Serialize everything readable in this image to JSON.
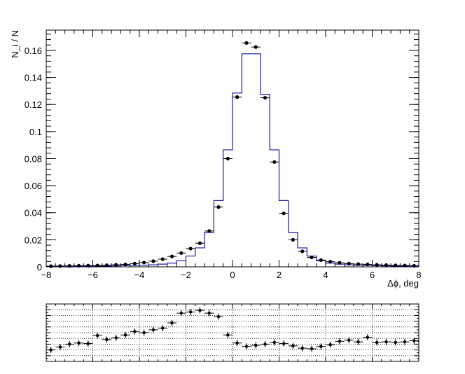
{
  "chart_data": [
    {
      "type": "histogram",
      "xlabel": "Δϕ, deg",
      "ylabel": "N_i / N",
      "xlim": [
        -8,
        8
      ],
      "ylim": [
        0,
        0.175
      ],
      "xticks": [
        "−8",
        "−6",
        "−4",
        "−2",
        "0",
        "2",
        "4",
        "6",
        "8"
      ],
      "yticks": [
        "0",
        "0.02",
        "0.04",
        "0.06",
        "0.08",
        "0.1",
        "0.12",
        "0.14",
        "0.16"
      ],
      "grid": false,
      "series": [
        {
          "style": "step",
          "color": "#1a1aa6",
          "bin_edges": [
            -8,
            -7.6,
            -7.2,
            -6.8,
            -6.4,
            -6,
            -5.6,
            -5.2,
            -4.8,
            -4.4,
            -4,
            -3.6,
            -3.2,
            -2.8,
            -2.4,
            -2,
            -1.6,
            -1.2,
            -0.8,
            -0.4,
            0,
            0.4,
            0.8,
            1.2,
            1.6,
            2,
            2.4,
            2.8,
            3.2,
            3.6,
            4,
            4.4,
            4.8,
            5.2,
            5.6,
            6,
            6.4,
            6.8,
            7.2,
            7.6,
            8
          ],
          "values": [
            0.0004,
            0.0004,
            0.0004,
            0.0005,
            0.0005,
            0.0006,
            0.0006,
            0.0007,
            0.0008,
            0.001,
            0.0012,
            0.0015,
            0.002,
            0.0028,
            0.0045,
            0.008,
            0.014,
            0.0255,
            0.049,
            0.0865,
            0.1285,
            0.1575,
            0.1575,
            0.1275,
            0.0865,
            0.049,
            0.0255,
            0.014,
            0.008,
            0.0045,
            0.0028,
            0.002,
            0.0015,
            0.0012,
            0.001,
            0.0008,
            0.0007,
            0.0006,
            0.0005,
            0.0004
          ]
        },
        {
          "style": "markers",
          "color": "#000000",
          "x": [
            -7.8,
            -7.4,
            -7,
            -6.6,
            -6.2,
            -5.8,
            -5.4,
            -5,
            -4.6,
            -4.2,
            -3.8,
            -3.4,
            -3,
            -2.6,
            -2.2,
            -1.8,
            -1.4,
            -1,
            -0.6,
            -0.2,
            0.2,
            0.6,
            1,
            1.4,
            1.8,
            2.2,
            2.6,
            3,
            3.4,
            3.8,
            4.2,
            4.6,
            5,
            5.4,
            5.8,
            6.2,
            6.6,
            7,
            7.4,
            7.8
          ],
          "y": [
            0.0005,
            0.0006,
            0.0007,
            0.0008,
            0.0009,
            0.001,
            0.0012,
            0.0015,
            0.0018,
            0.0024,
            0.0032,
            0.0042,
            0.0057,
            0.0077,
            0.0102,
            0.0135,
            0.0175,
            0.0265,
            0.0442,
            0.08,
            0.1255,
            0.1655,
            0.1625,
            0.125,
            0.0775,
            0.0395,
            0.02,
            0.0115,
            0.007,
            0.005,
            0.0038,
            0.003,
            0.0024,
            0.002,
            0.0018,
            0.0015,
            0.0013,
            0.0011,
            0.001,
            0.0008
          ]
        }
      ]
    },
    {
      "type": "scatter",
      "xlim": [
        -8,
        8
      ],
      "ylim": [
        0,
        1
      ],
      "grid": true,
      "error_bars": true,
      "x": [
        -7.8,
        -7.4,
        -7,
        -6.6,
        -6.2,
        -5.8,
        -5.4,
        -5,
        -4.6,
        -4.2,
        -3.8,
        -3.4,
        -3,
        -2.6,
        -2.2,
        -1.8,
        -1.4,
        -1,
        -0.6,
        -0.2,
        0.2,
        0.6,
        1,
        1.4,
        1.8,
        2.2,
        2.6,
        3,
        3.4,
        3.8,
        4.2,
        4.6,
        5,
        5.4,
        5.8,
        6.2,
        6.6,
        7,
        7.4,
        7.8
      ],
      "y": [
        0.2,
        0.25,
        0.3,
        0.32,
        0.31,
        0.45,
        0.38,
        0.41,
        0.46,
        0.52,
        0.5,
        0.55,
        0.58,
        0.67,
        0.84,
        0.86,
        0.89,
        0.84,
        0.78,
        0.46,
        0.32,
        0.26,
        0.28,
        0.3,
        0.33,
        0.31,
        0.27,
        0.23,
        0.22,
        0.26,
        0.29,
        0.35,
        0.37,
        0.34,
        0.42,
        0.33,
        0.34,
        0.33,
        0.34,
        0.36
      ]
    }
  ]
}
